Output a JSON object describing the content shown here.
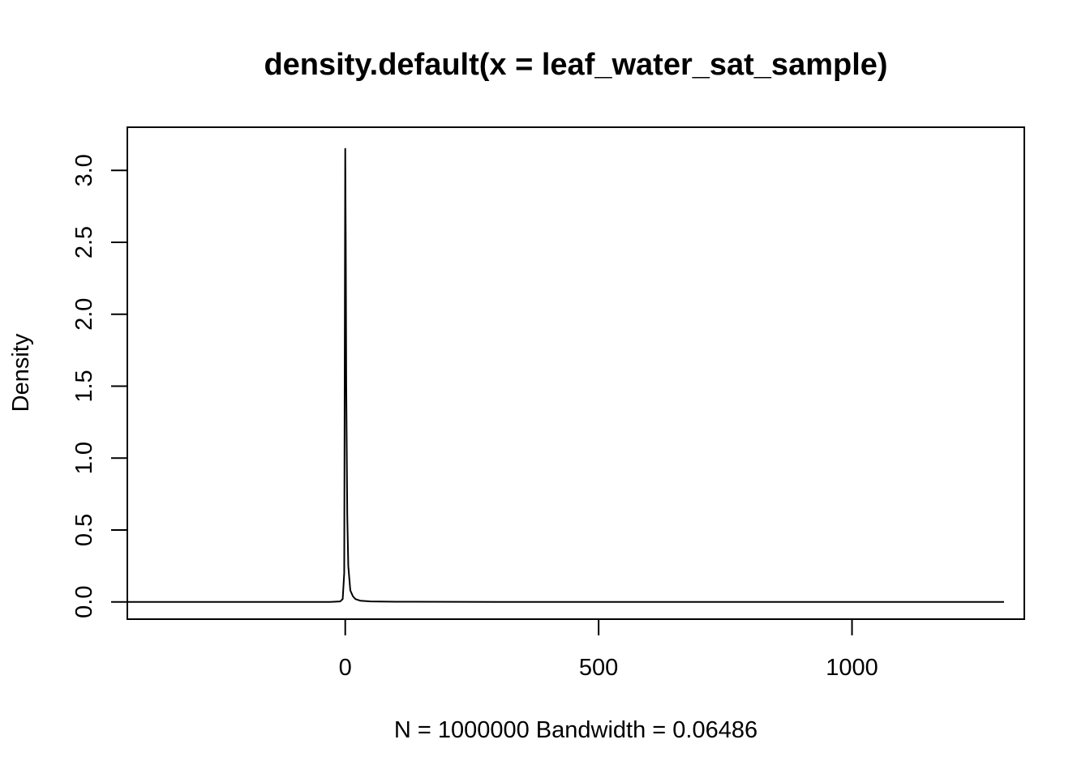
{
  "chart_data": {
    "type": "line",
    "title": "density.default(x = leaf_water_sat_sample)",
    "xlabel": "N = 1000000   Bandwidth = 0.06486",
    "ylabel": "Density",
    "xlim": [
      -430,
      1340
    ],
    "ylim": [
      -0.12,
      3.3
    ],
    "xticks": [
      0,
      500,
      1000
    ],
    "xtick_labels": [
      "0",
      "500",
      "1000"
    ],
    "yticks": [
      0,
      0.5,
      1,
      1.5,
      2,
      2.5,
      3
    ],
    "ytick_labels": [
      "0.0",
      "0.5",
      "1.0",
      "1.5",
      "2.0",
      "2.5",
      "3.0"
    ],
    "grid": false,
    "legend": "none",
    "series": [
      {
        "x": [
          -430,
          -30,
          -10,
          -5,
          -2,
          0,
          1,
          2,
          4,
          6,
          10,
          15,
          20,
          30,
          50,
          100,
          300,
          600,
          1000,
          1300
        ],
        "y": [
          0,
          0,
          0.003,
          0.02,
          0.2,
          3.15,
          2.5,
          1.5,
          0.6,
          0.25,
          0.08,
          0.04,
          0.02,
          0.008,
          0.003,
          0.001,
          0,
          0,
          0,
          0
        ]
      }
    ]
  }
}
